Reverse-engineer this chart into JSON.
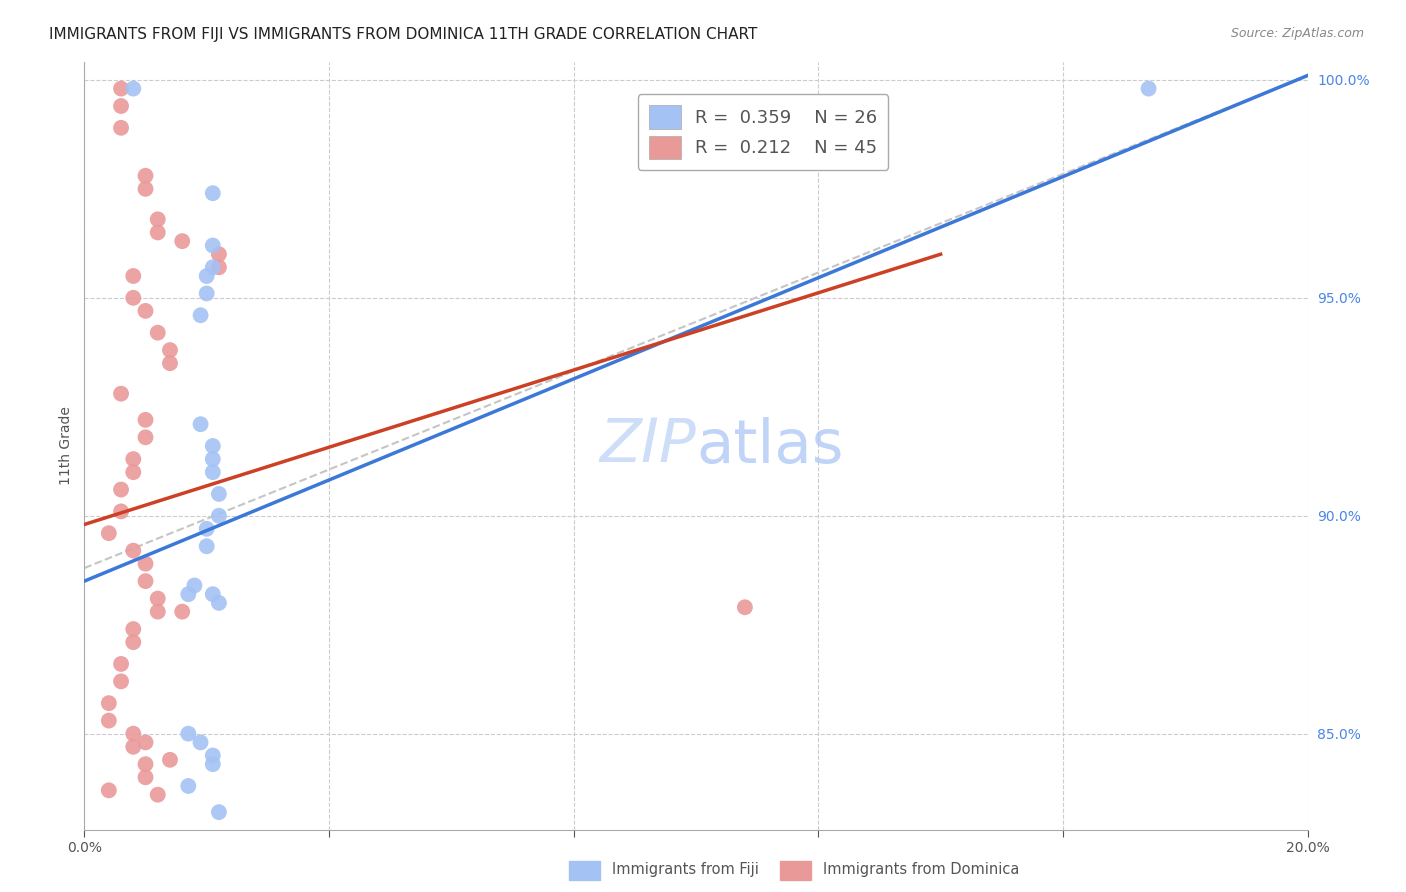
{
  "title": "IMMIGRANTS FROM FIJI VS IMMIGRANTS FROM DOMINICA 11TH GRADE CORRELATION CHART",
  "source": "Source: ZipAtlas.com",
  "ylabel": "11th Grade",
  "x_min": 0.0,
  "x_max": 0.2,
  "y_min": 0.828,
  "y_max": 1.004,
  "x_ticks": [
    0.0,
    0.04,
    0.08,
    0.12,
    0.16,
    0.2
  ],
  "y_ticks": [
    0.85,
    0.9,
    0.95,
    1.0
  ],
  "y_tick_labels": [
    "85.0%",
    "90.0%",
    "95.0%",
    "100.0%"
  ],
  "fiji_R": "0.359",
  "fiji_N": "26",
  "dominica_R": "0.212",
  "dominica_N": "45",
  "fiji_color": "#a4c2f4",
  "dominica_color": "#ea9999",
  "fiji_line_color": "#3c78d8",
  "dominica_line_color": "#cc4125",
  "ref_line_color": "#b7b7b7",
  "watermark_zip": "ZIP",
  "watermark_atlas": "atlas",
  "background_color": "#ffffff",
  "grid_color": "#cccccc",
  "fiji_line_x": [
    0.0,
    0.2
  ],
  "fiji_line_y": [
    0.885,
    1.001
  ],
  "dominica_line_x": [
    0.0,
    0.14
  ],
  "dominica_line_y": [
    0.898,
    0.96
  ],
  "ref_line_x": [
    0.0,
    0.2
  ],
  "ref_line_y": [
    0.888,
    1.001
  ],
  "fiji_points_x": [
    0.021,
    0.021,
    0.021,
    0.02,
    0.02,
    0.019,
    0.019,
    0.021,
    0.021,
    0.021,
    0.022,
    0.022,
    0.02,
    0.02,
    0.018,
    0.017,
    0.021,
    0.022,
    0.017,
    0.019,
    0.021,
    0.021,
    0.017,
    0.022,
    0.008,
    0.174
  ],
  "fiji_points_y": [
    0.974,
    0.962,
    0.957,
    0.955,
    0.951,
    0.946,
    0.921,
    0.916,
    0.913,
    0.91,
    0.905,
    0.9,
    0.897,
    0.893,
    0.884,
    0.882,
    0.882,
    0.88,
    0.85,
    0.848,
    0.845,
    0.843,
    0.838,
    0.832,
    0.998,
    0.998
  ],
  "dominica_points_x": [
    0.006,
    0.006,
    0.006,
    0.01,
    0.01,
    0.012,
    0.012,
    0.016,
    0.022,
    0.022,
    0.008,
    0.008,
    0.01,
    0.012,
    0.014,
    0.014,
    0.006,
    0.01,
    0.01,
    0.008,
    0.008,
    0.006,
    0.006,
    0.004,
    0.008,
    0.01,
    0.01,
    0.012,
    0.012,
    0.008,
    0.008,
    0.006,
    0.006,
    0.004,
    0.004,
    0.01,
    0.014,
    0.016,
    0.108,
    0.004,
    0.008,
    0.008,
    0.01,
    0.01,
    0.012
  ],
  "dominica_points_y": [
    0.998,
    0.994,
    0.989,
    0.978,
    0.975,
    0.968,
    0.965,
    0.963,
    0.96,
    0.957,
    0.955,
    0.95,
    0.947,
    0.942,
    0.938,
    0.935,
    0.928,
    0.922,
    0.918,
    0.913,
    0.91,
    0.906,
    0.901,
    0.896,
    0.892,
    0.889,
    0.885,
    0.881,
    0.878,
    0.874,
    0.871,
    0.866,
    0.862,
    0.857,
    0.853,
    0.848,
    0.844,
    0.878,
    0.879,
    0.837,
    0.85,
    0.847,
    0.843,
    0.84,
    0.836
  ],
  "title_fontsize": 11,
  "axis_label_fontsize": 10,
  "tick_fontsize": 10,
  "legend_fontsize": 13,
  "watermark_fontsize": 44
}
